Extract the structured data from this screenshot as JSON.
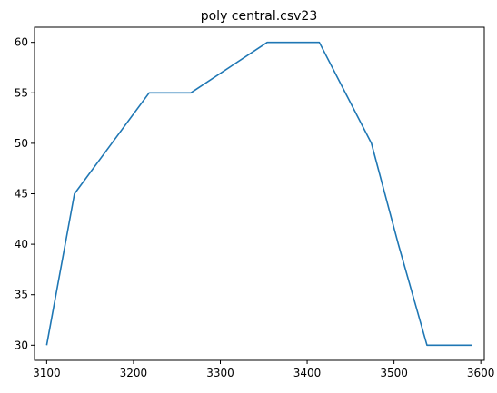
{
  "chart_data": {
    "type": "line",
    "title": "poly central.csv23",
    "xlabel": "",
    "ylabel": "",
    "xlim": [
      3086,
      3604
    ],
    "ylim": [
      28.5,
      61.5
    ],
    "xticks": [
      3100,
      3200,
      3300,
      3400,
      3500,
      3600
    ],
    "yticks": [
      30,
      35,
      40,
      45,
      50,
      55,
      60
    ],
    "grid": false,
    "series": [
      {
        "color": "#1f77b4",
        "x": [
          3100,
          3132,
          3218,
          3266,
          3354,
          3414,
          3474,
          3505,
          3538,
          3590
        ],
        "y": [
          30,
          45,
          55,
          55,
          60,
          60,
          50,
          40,
          30,
          30
        ]
      }
    ]
  }
}
